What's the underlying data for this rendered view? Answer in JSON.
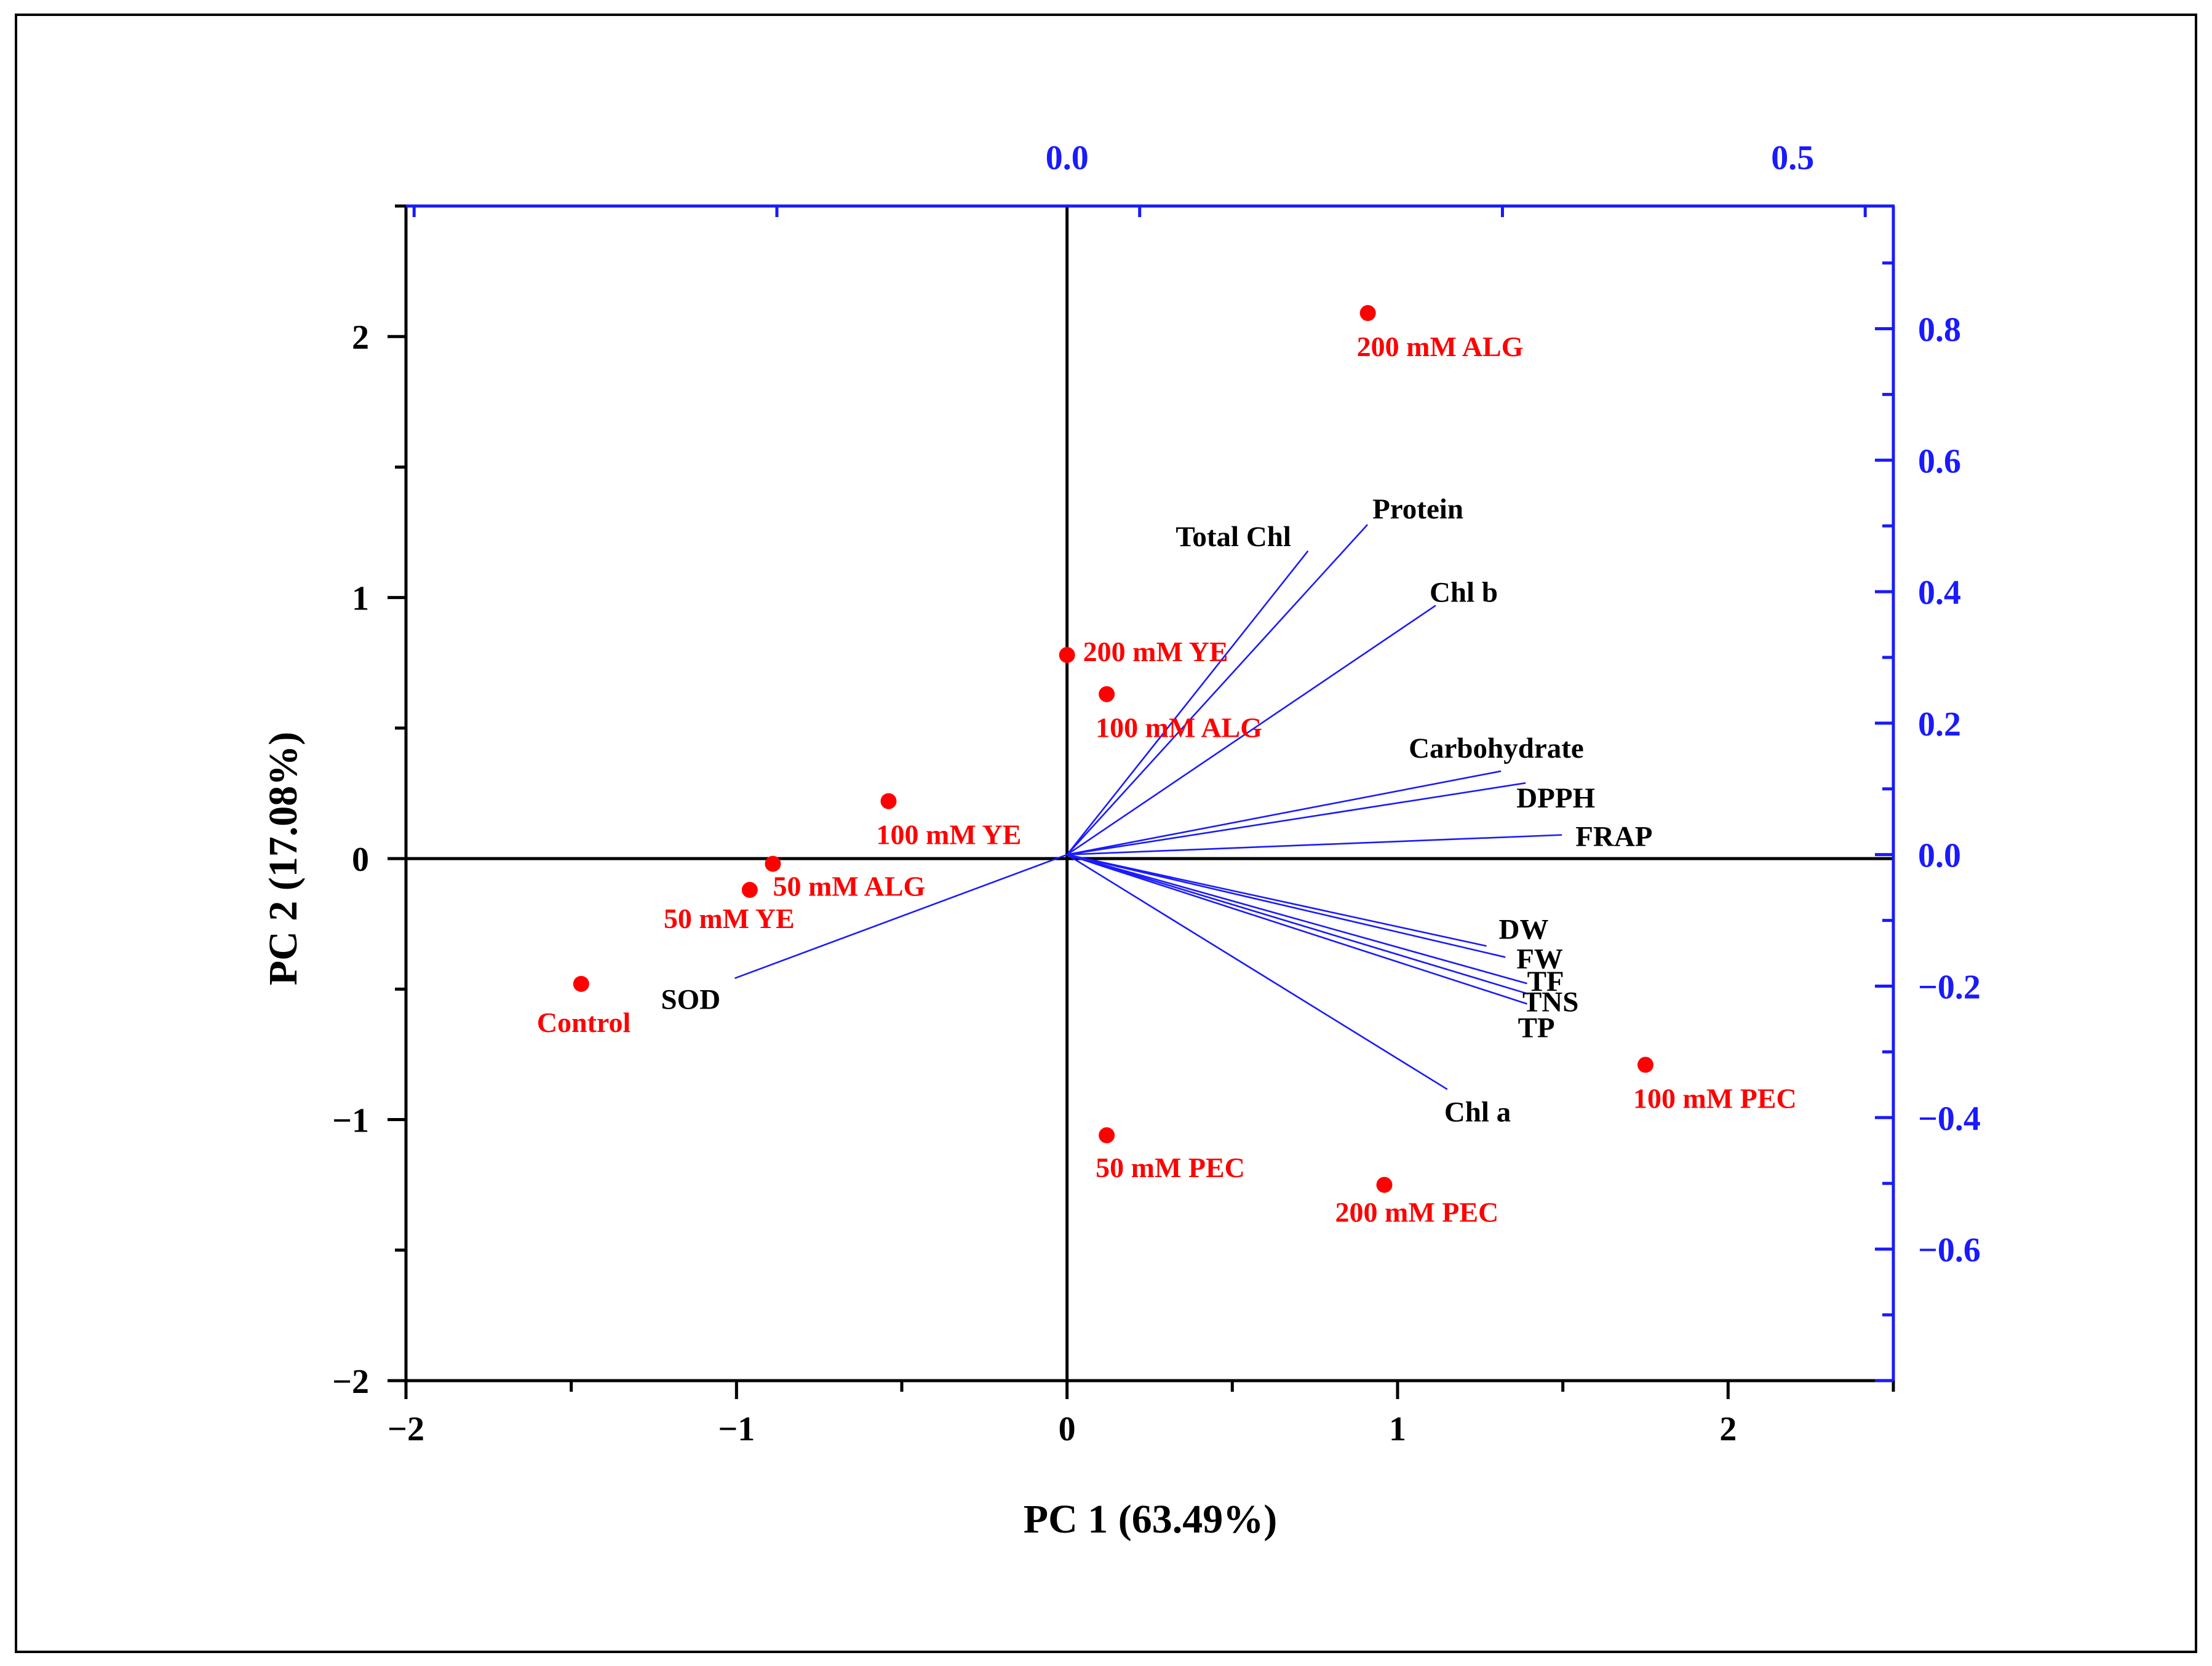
{
  "chart_data": {
    "type": "scatter",
    "subtype": "pca-biplot",
    "xlabel": "PC 1 (63.49%)",
    "ylabel": "PC 2 (17.08%)",
    "scores_axes": {
      "xlim": [
        -2,
        2.5
      ],
      "ylim": [
        -2,
        2.5
      ],
      "x_ticks": [
        {
          "value": -2,
          "label": "−2"
        },
        {
          "value": -1,
          "label": "−1"
        },
        {
          "value": 0,
          "label": "0"
        },
        {
          "value": 1,
          "label": "1"
        },
        {
          "value": 2,
          "label": "2"
        }
      ],
      "y_ticks": [
        {
          "value": -2,
          "label": "−2"
        },
        {
          "value": -1,
          "label": "−1"
        },
        {
          "value": 0,
          "label": "0"
        },
        {
          "value": 1,
          "label": "1"
        },
        {
          "value": 2,
          "label": "2"
        }
      ]
    },
    "loadings_axes": {
      "color": "#1a1aff",
      "xlim": [
        -0.4556,
        0.5694
      ],
      "ylim": [
        -0.8001,
        0.9866
      ],
      "x_ticks": [
        {
          "value": 0.0,
          "label": "0.0"
        },
        {
          "value": 0.5,
          "label": "0.5"
        }
      ],
      "y_ticks": [
        {
          "value": 0.8,
          "label": "0.8"
        },
        {
          "value": 0.6,
          "label": "0.6"
        },
        {
          "value": 0.4,
          "label": "0.4"
        },
        {
          "value": 0.2,
          "label": "0.2"
        },
        {
          "value": 0.0,
          "label": "0.0"
        },
        {
          "value": -0.2,
          "label": "−0.2"
        },
        {
          "value": -0.4,
          "label": "−0.4"
        },
        {
          "value": -0.6,
          "label": "−0.6"
        }
      ]
    },
    "scores": {
      "color": "#ff0000",
      "points": [
        {
          "label": "200 mM ALG",
          "x": 0.91,
          "y": 2.09
        },
        {
          "label": "200 mM YE",
          "x": 0.0,
          "y": 0.78
        },
        {
          "label": "100 mM ALG",
          "x": 0.12,
          "y": 0.63
        },
        {
          "label": "100 mM YE",
          "x": -0.54,
          "y": 0.22
        },
        {
          "label": "50 mM ALG",
          "x": -0.89,
          "y": -0.02
        },
        {
          "label": "50 mM YE",
          "x": -0.96,
          "y": -0.12
        },
        {
          "label": "Control",
          "x": -1.47,
          "y": -0.48
        },
        {
          "label": "50 mM  PEC",
          "x": 0.12,
          "y": -1.06
        },
        {
          "label": "200 mM PEC",
          "x": 0.96,
          "y": -1.25
        },
        {
          "label": "100 mM PEC",
          "x": 1.75,
          "y": -0.79
        }
      ]
    },
    "loadings": {
      "color": "#1a1aff",
      "vectors": [
        {
          "label": "Total Chl",
          "x": 0.166,
          "y": 0.462
        },
        {
          "label": "Protein",
          "x": 0.207,
          "y": 0.502
        },
        {
          "label": "Chl b",
          "x": 0.254,
          "y": 0.379
        },
        {
          "label": "Carbohydrate",
          "x": 0.299,
          "y": 0.127
        },
        {
          "label": "DPPH",
          "x": 0.316,
          "y": 0.109
        },
        {
          "label": "FRAP",
          "x": 0.341,
          "y": 0.03
        },
        {
          "label": "DW",
          "x": 0.289,
          "y": -0.139
        },
        {
          "label": "FW",
          "x": 0.302,
          "y": -0.156
        },
        {
          "label": "TF",
          "x": 0.317,
          "y": -0.196
        },
        {
          "label": "TNS",
          "x": 0.318,
          "y": -0.212
        },
        {
          "label": "TP",
          "x": 0.317,
          "y": -0.227
        },
        {
          "label": "Chl a",
          "x": 0.262,
          "y": -0.357
        },
        {
          "label": "SOD",
          "x": -0.229,
          "y": -0.188
        }
      ]
    }
  }
}
